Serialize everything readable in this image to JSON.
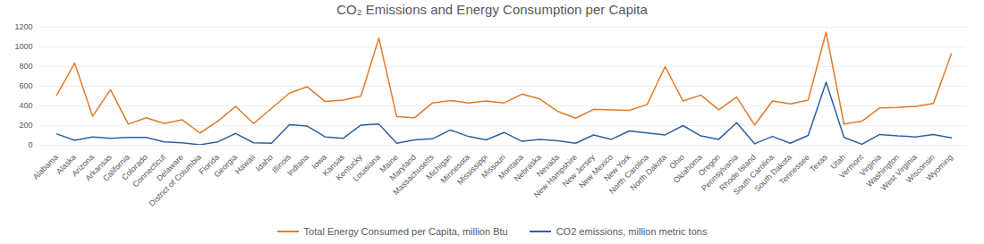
{
  "chart_data": {
    "type": "line",
    "title": "CO₂ Emissions and Energy Consumption per Capita",
    "categories": [
      "Alabama",
      "Alaska",
      "Arizona",
      "Arkansas",
      "California",
      "Colorado",
      "Connecticut",
      "Delaware",
      "District of Columbia",
      "Florida",
      "Georgia",
      "Hawaii",
      "Idaho",
      "Illinois",
      "Indiana",
      "Iowa",
      "Kansas",
      "Kentucky",
      "Louisiana",
      "Maine",
      "Maryland",
      "Massachusetts",
      "Michigan",
      "Minnesota",
      "Mississippi",
      "Missouri",
      "Montana",
      "Nebraska",
      "Nevada",
      "New Hampshire",
      "New Jersey",
      "New Mexico",
      "New York",
      "North Carolina",
      "North Dakota",
      "Ohio",
      "Oklahoma",
      "Oregon",
      "Pennsylvania",
      "Rhode Island",
      "South Carolina",
      "South Dakota",
      "Tennessee",
      "Texas",
      "Utah",
      "Vermont",
      "Virginia",
      "Washington",
      "West Virginia",
      "Wisconsin",
      "Wyoming"
    ],
    "series": [
      {
        "name": "Total Energy Consumed per Capita, million Btu",
        "color": "#e07b2a",
        "values": [
          510,
          835,
          295,
          565,
          215,
          280,
          220,
          260,
          125,
          245,
          395,
          220,
          375,
          530,
          595,
          445,
          460,
          500,
          1090,
          290,
          280,
          430,
          455,
          430,
          450,
          430,
          520,
          470,
          345,
          275,
          365,
          360,
          355,
          415,
          800,
          450,
          510,
          360,
          490,
          205,
          450,
          420,
          460,
          1150,
          215,
          245,
          380,
          385,
          395,
          425,
          930
        ]
      },
      {
        "name": "CO2 emissions, million metric tons",
        "color": "#2e5fa3",
        "values": [
          115,
          50,
          85,
          70,
          80,
          80,
          35,
          25,
          5,
          35,
          120,
          25,
          20,
          210,
          195,
          85,
          70,
          205,
          215,
          20,
          55,
          65,
          155,
          90,
          55,
          130,
          40,
          60,
          45,
          20,
          105,
          60,
          145,
          125,
          105,
          200,
          95,
          60,
          230,
          15,
          90,
          20,
          100,
          640,
          80,
          10,
          110,
          95,
          85,
          110,
          75
        ]
      }
    ],
    "ylim": [
      0,
      1200
    ],
    "yticks": [
      0,
      200,
      400,
      600,
      800,
      1000,
      1200
    ],
    "grid": true,
    "legend": "bottom"
  }
}
